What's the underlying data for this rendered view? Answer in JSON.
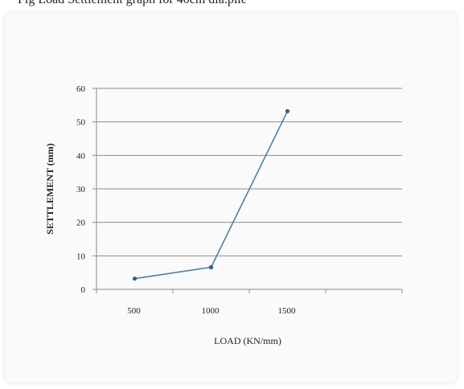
{
  "caption": "Fig    Load  Settlement graph for 40cm dia.pile",
  "chart_data": {
    "type": "line",
    "title": "",
    "xlabel": "LOAD (KN/mm)",
    "ylabel": "SETTLEMENT (mm)",
    "categories": [
      "500",
      "1000",
      "1500"
    ],
    "series": [
      {
        "values": [
          3.2,
          6.6,
          53.2
        ]
      }
    ],
    "ylim": [
      0,
      60
    ],
    "yticks": [
      0,
      10,
      20,
      30,
      40,
      50,
      60
    ],
    "grid": true,
    "legend": "none",
    "line_color": "#4f7fa6"
  }
}
